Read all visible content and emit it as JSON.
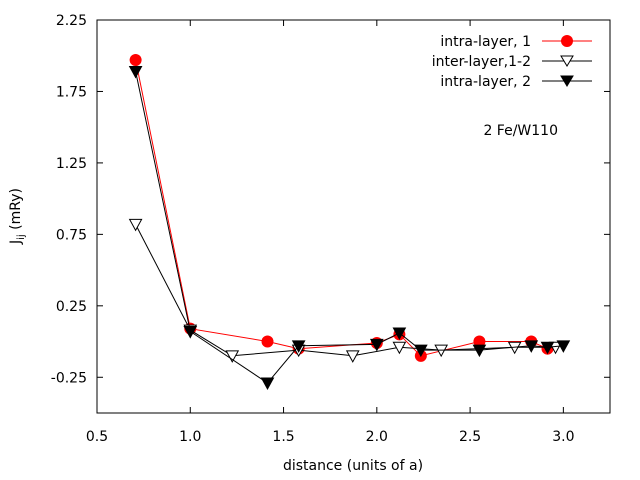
{
  "chart_data": {
    "type": "line",
    "title": "",
    "xlabel": "distance (units of a)",
    "ylabel": "J",
    "ylabel_subscript": "ij",
    "ylabel_unit": " (mRy)",
    "xlim": [
      0.5,
      3.25
    ],
    "ylim": [
      -0.5,
      2.25
    ],
    "xticks": [
      0.5,
      1.0,
      1.5,
      2.0,
      2.5,
      3.0
    ],
    "xtick_labels": [
      "0.5",
      "1.0",
      "1.5",
      "2.0",
      "2.5",
      "3.0"
    ],
    "yticks": [
      -0.25,
      0.25,
      0.75,
      1.25,
      1.75,
      2.25
    ],
    "ytick_labels": [
      "-0.25",
      "0.25",
      "0.75",
      "1.25",
      "1.75",
      "2.25"
    ],
    "annotation": "2 Fe/W110",
    "legend_position": "top-right",
    "series": [
      {
        "name": "intra-layer, 1",
        "color": "#ff0000",
        "marker": "circle-filled",
        "points": [
          [
            0.707,
            1.97
          ],
          [
            1.0,
            0.09
          ],
          [
            1.414,
            0.0
          ],
          [
            1.581,
            -0.05
          ],
          [
            2.0,
            -0.01
          ],
          [
            2.121,
            0.05
          ],
          [
            2.236,
            -0.1
          ],
          [
            2.55,
            0.0
          ],
          [
            2.828,
            0.0
          ],
          [
            2.915,
            -0.05
          ]
        ]
      },
      {
        "name": "inter-layer,1-2",
        "color": "#000000",
        "marker": "triangle-down-open",
        "points": [
          [
            0.707,
            0.82
          ],
          [
            1.0,
            0.08
          ],
          [
            1.225,
            -0.1
          ],
          [
            1.581,
            -0.06
          ],
          [
            1.871,
            -0.1
          ],
          [
            2.121,
            -0.04
          ],
          [
            2.345,
            -0.06
          ],
          [
            2.739,
            -0.04
          ],
          [
            2.958,
            -0.04
          ]
        ]
      },
      {
        "name": "intra-layer, 2",
        "color": "#000000",
        "marker": "triangle-down-filled",
        "points": [
          [
            0.707,
            1.89
          ],
          [
            1.0,
            0.07
          ],
          [
            1.414,
            -0.29
          ],
          [
            1.581,
            -0.03
          ],
          [
            2.0,
            -0.02
          ],
          [
            2.121,
            0.06
          ],
          [
            2.236,
            -0.06
          ],
          [
            2.55,
            -0.06
          ],
          [
            2.828,
            -0.03
          ],
          [
            2.915,
            -0.04
          ],
          [
            3.0,
            -0.03
          ]
        ]
      }
    ]
  }
}
